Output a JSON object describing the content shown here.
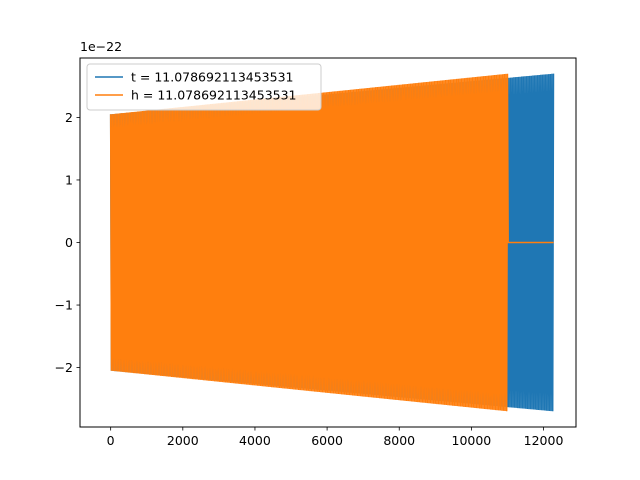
{
  "chart_data": {
    "type": "line",
    "title": "",
    "xlabel": "",
    "ylabel": "",
    "y_offset_label": "1e−22",
    "xlim": [
      -850,
      12900
    ],
    "ylim": [
      -2.95,
      2.95
    ],
    "grid": false,
    "legend_position": "top-left",
    "x_ticks": [
      0,
      2000,
      4000,
      6000,
      8000,
      10000,
      12000
    ],
    "x_tick_labels": [
      "0",
      "2000",
      "4000",
      "6000",
      "8000",
      "10000",
      "12000"
    ],
    "y_ticks": [
      -2,
      -1,
      0,
      1,
      2
    ],
    "y_tick_labels": [
      "−2",
      "−1",
      "0",
      "1",
      "2"
    ],
    "series": [
      {
        "name": "t = 11.078692113453531",
        "color": "#1f77b4",
        "kind": "oscillation",
        "x_start": 0,
        "x_signal_start": 0,
        "x_signal_end": 12280,
        "amplitude_start": 2.05,
        "amplitude_end": 2.7,
        "flat_value": 0
      },
      {
        "name": "h = 11.078692113453531",
        "color": "#ff7f0e",
        "kind": "oscillation",
        "x_start": 0,
        "x_signal_start": 0,
        "x_signal_end": 11020,
        "amplitude_start": 2.05,
        "amplitude_end": 2.7,
        "flat_end": 12280,
        "flat_value": 0
      }
    ]
  }
}
